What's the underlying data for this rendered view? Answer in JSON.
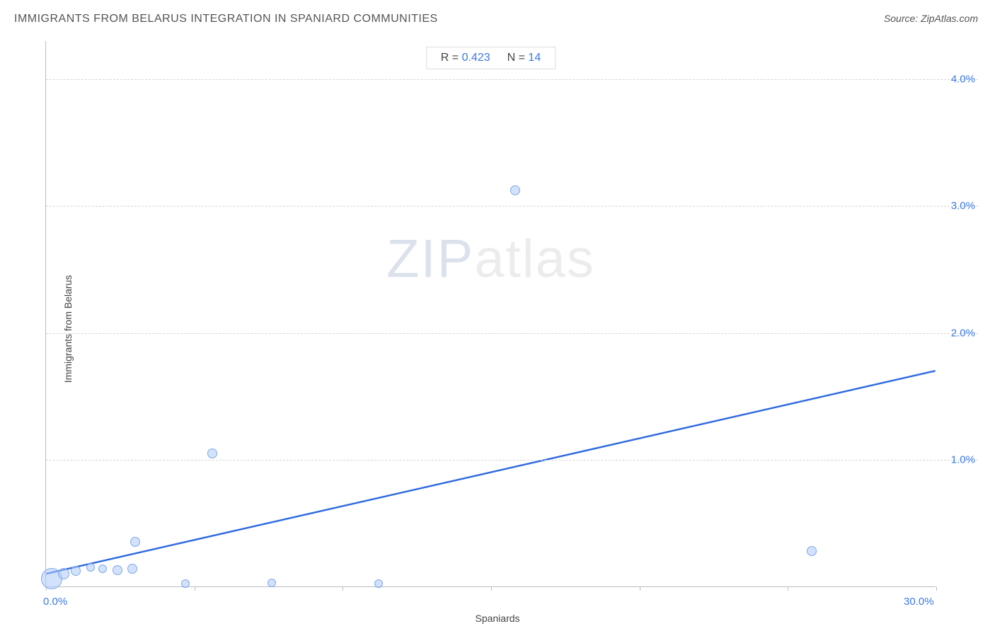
{
  "title": "IMMIGRANTS FROM BELARUS INTEGRATION IN SPANIARD COMMUNITIES",
  "source": "Source: ZipAtlas.com",
  "watermark_zip": "ZIP",
  "watermark_atlas": "atlas",
  "chart": {
    "type": "scatter",
    "x_label": "Spaniards",
    "y_label": "Immigrants from Belarus",
    "xlim": [
      0,
      30
    ],
    "ylim": [
      0,
      4.3
    ],
    "x_ticks": [
      0,
      5,
      10,
      15,
      20,
      25,
      30
    ],
    "x_tick_labels": [
      "0.0%",
      "",
      "",
      "",
      "",
      "",
      "30.0%"
    ],
    "y_ticks": [
      1.0,
      2.0,
      3.0,
      4.0
    ],
    "y_tick_labels": [
      "1.0%",
      "2.0%",
      "3.0%",
      "4.0%"
    ],
    "grid_color": "#d6d6d6",
    "axis_color": "#bdbdbd",
    "tick_label_color": "#3b78e7",
    "background_color": "#ffffff",
    "stats": {
      "r_label": "R =",
      "r_value": "0.423",
      "n_label": "N =",
      "n_value": "14"
    },
    "trend_line": {
      "x1": 0,
      "y1": 0.1,
      "x2": 30,
      "y2": 1.7,
      "color": "#2f6ae0",
      "width": 2.5
    },
    "marker_fill": "rgba(174,203,250,0.55)",
    "marker_stroke": "#7fa7e8",
    "points": [
      {
        "x": 0.2,
        "y": 0.06,
        "r": 30
      },
      {
        "x": 0.6,
        "y": 0.1,
        "r": 16
      },
      {
        "x": 1.0,
        "y": 0.12,
        "r": 14
      },
      {
        "x": 1.5,
        "y": 0.15,
        "r": 12
      },
      {
        "x": 1.9,
        "y": 0.14,
        "r": 12
      },
      {
        "x": 2.4,
        "y": 0.13,
        "r": 14
      },
      {
        "x": 2.9,
        "y": 0.14,
        "r": 14
      },
      {
        "x": 3.0,
        "y": 0.35,
        "r": 14
      },
      {
        "x": 4.7,
        "y": 0.02,
        "r": 12
      },
      {
        "x": 5.6,
        "y": 1.05,
        "r": 14
      },
      {
        "x": 7.6,
        "y": 0.03,
        "r": 12
      },
      {
        "x": 11.2,
        "y": 0.02,
        "r": 12
      },
      {
        "x": 15.8,
        "y": 3.12,
        "r": 14
      },
      {
        "x": 25.8,
        "y": 0.28,
        "r": 14
      }
    ]
  }
}
